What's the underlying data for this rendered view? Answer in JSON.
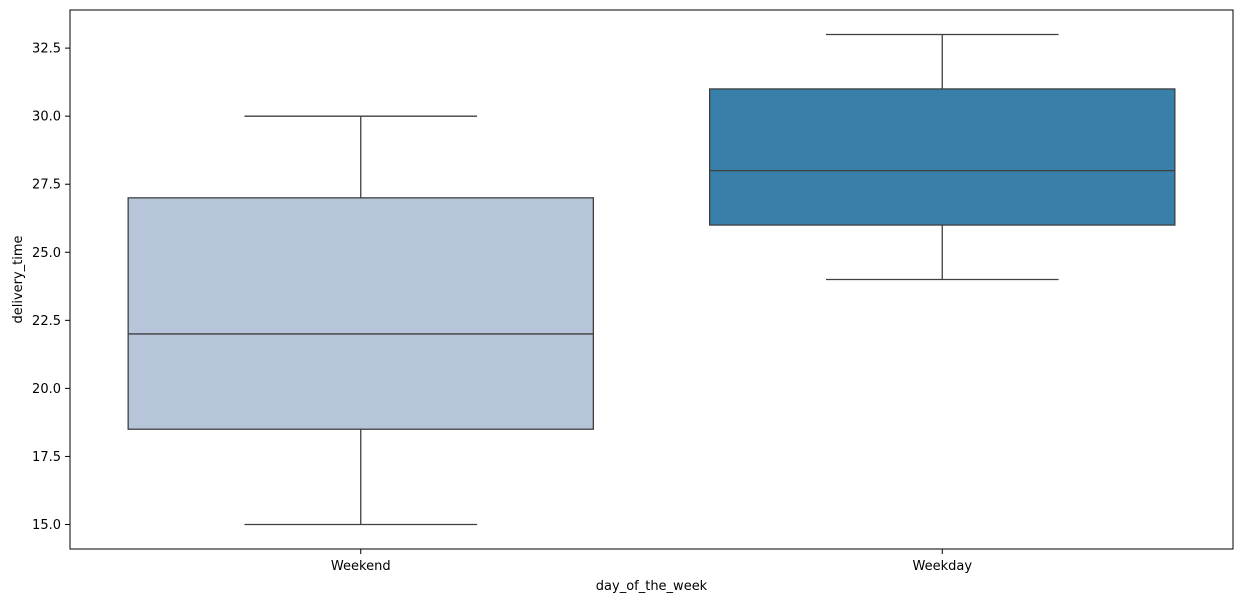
{
  "chart_data": {
    "type": "box",
    "xlabel": "day_of_the_week",
    "ylabel": "delivery_time",
    "ylim": [
      14.1,
      33.9
    ],
    "yticks": [
      "15.0",
      "17.5",
      "20.0",
      "22.5",
      "25.0",
      "27.5",
      "30.0",
      "32.5"
    ],
    "ytick_values": [
      15.0,
      17.5,
      20.0,
      22.5,
      25.0,
      27.5,
      30.0,
      32.5
    ],
    "categories": [
      "Weekend",
      "Weekday"
    ],
    "boxes": [
      {
        "category": "Weekend",
        "whisker_low": 15.0,
        "q1": 18.5,
        "median": 22.0,
        "q3": 27.0,
        "whisker_high": 30.0,
        "color": "#b7c5da"
      },
      {
        "category": "Weekday",
        "whisker_low": 24.0,
        "q1": 26.0,
        "median": 28.0,
        "q3": 31.0,
        "whisker_high": 33.0,
        "color": "#3880aa"
      }
    ],
    "grid": false,
    "legend": "none"
  },
  "colors": {
    "box_edge": "#3f3f3f",
    "axis": "#000000"
  }
}
